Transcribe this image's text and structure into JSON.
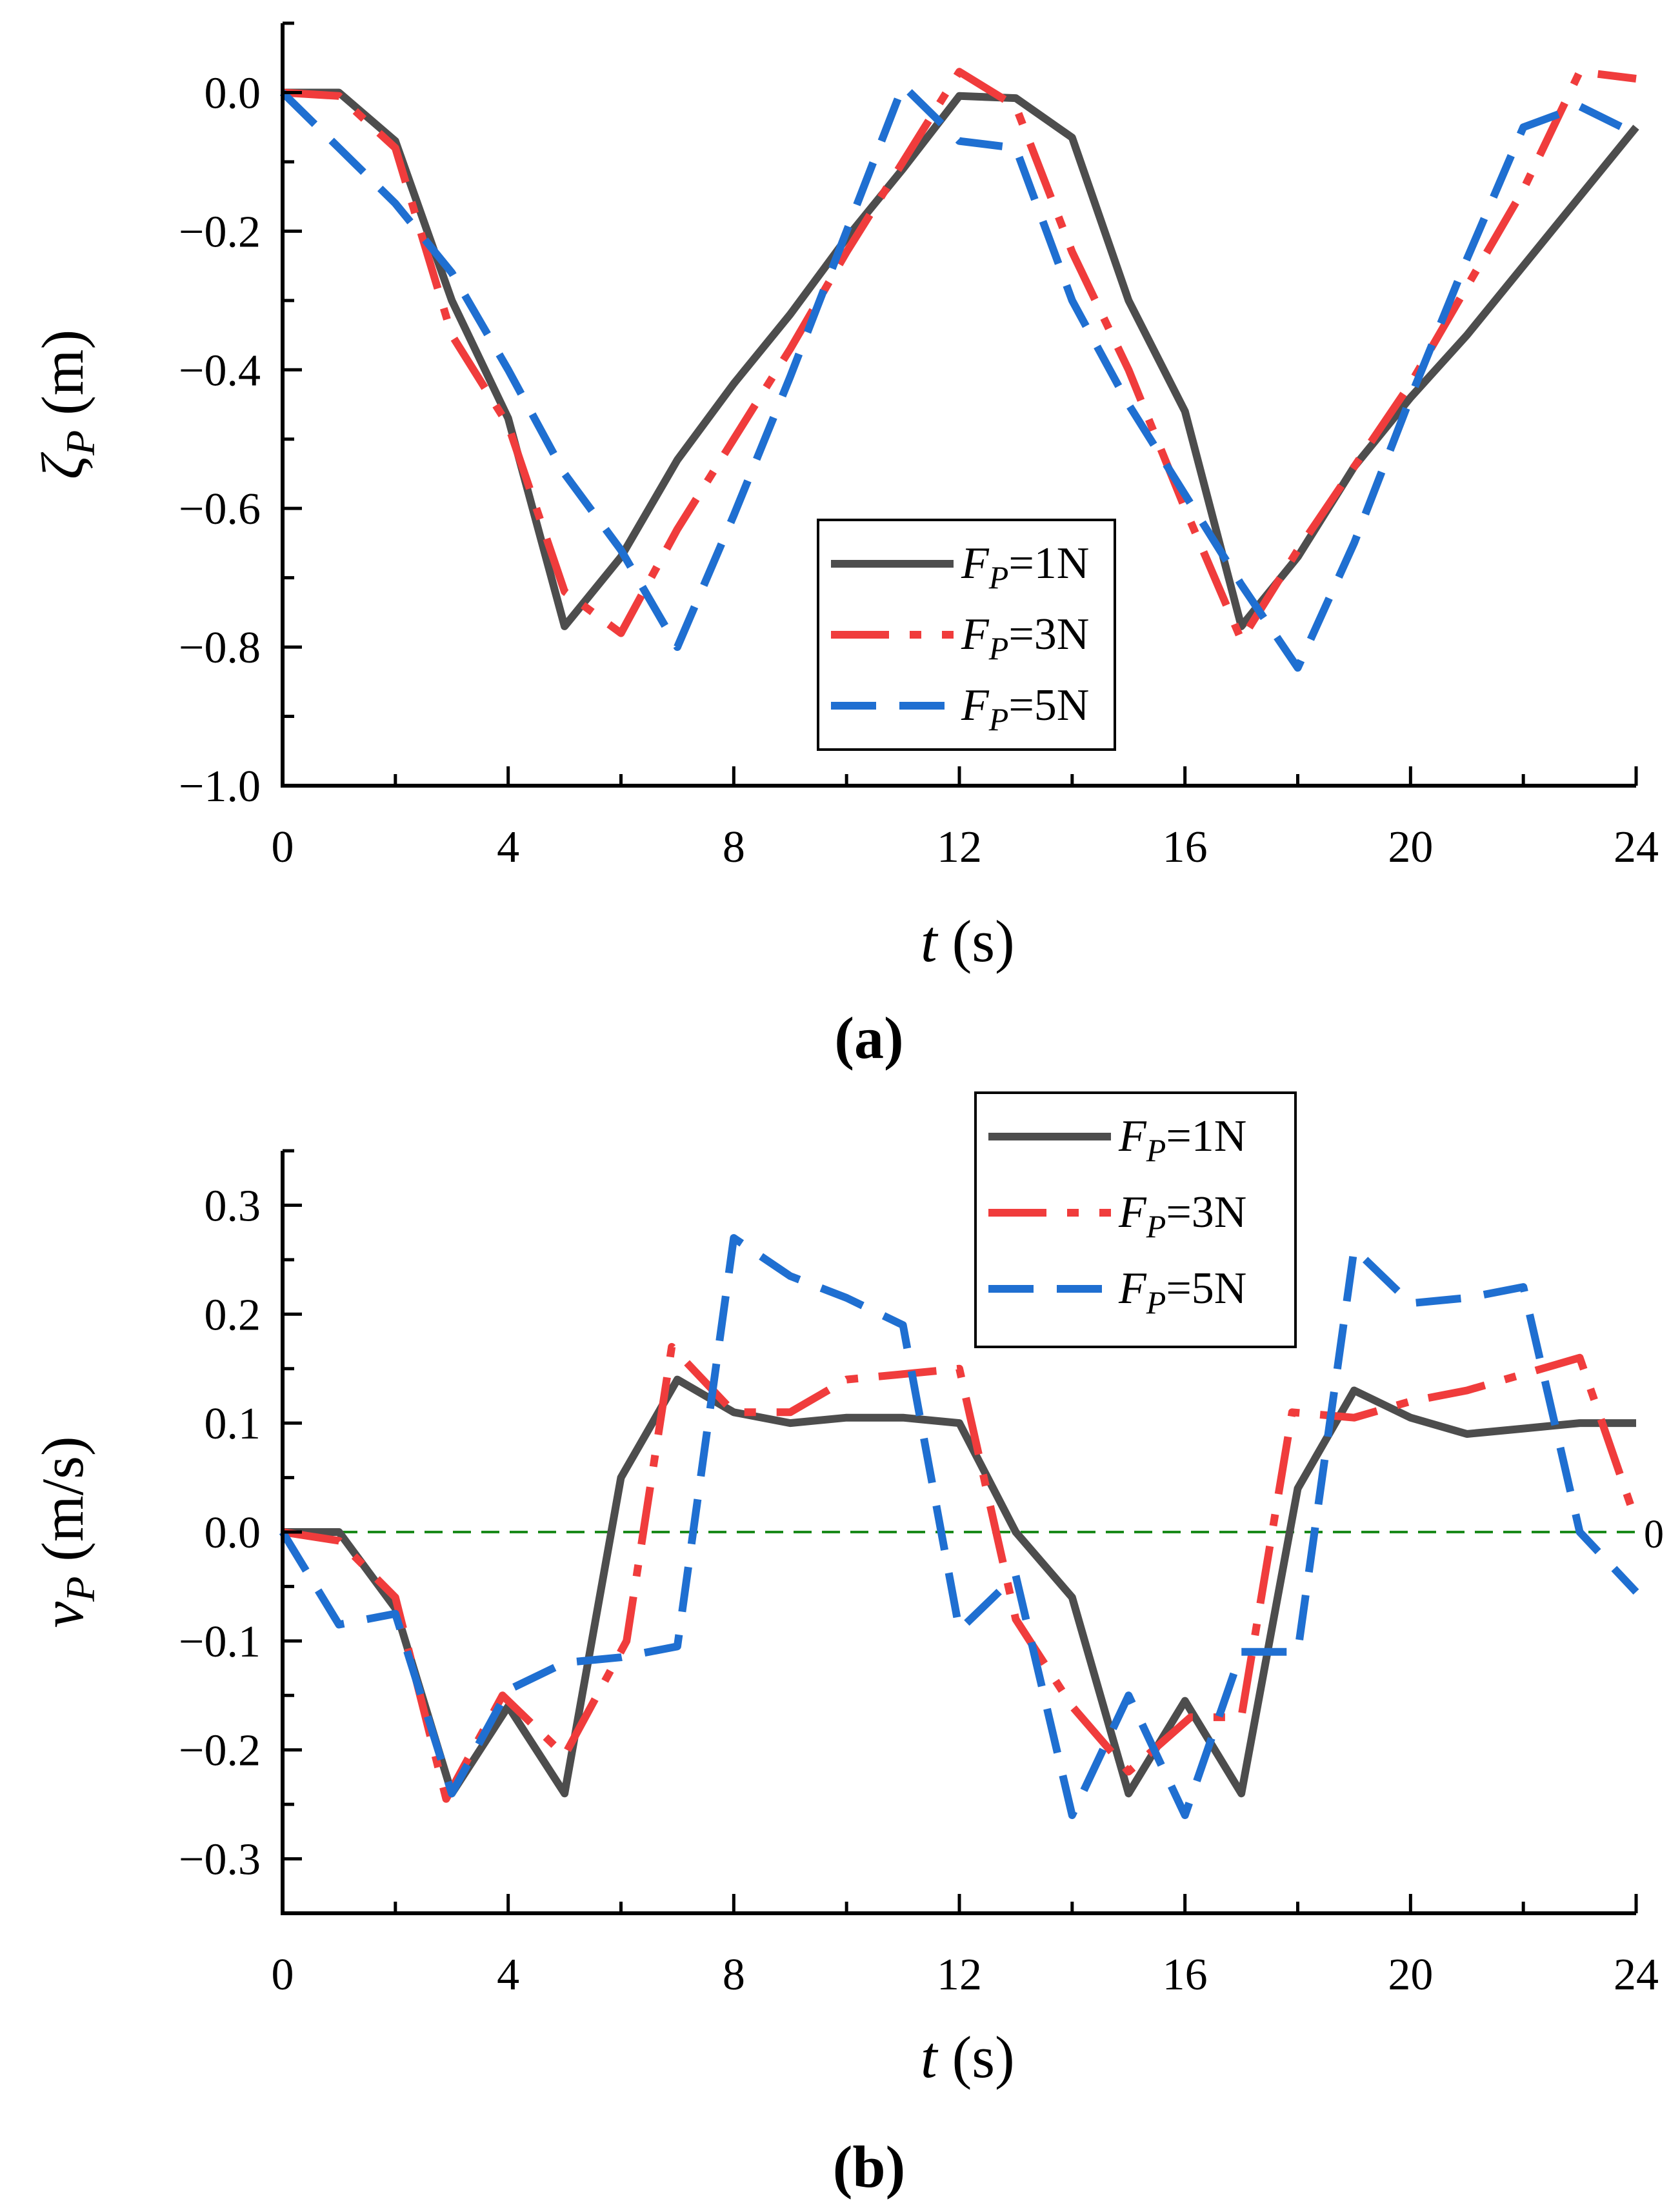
{
  "chart_data": [
    {
      "type": "line",
      "panel_label": "(a)",
      "xlabel_var": "t",
      "xlabel_unit": " (s)",
      "ylabel_var": "ζ",
      "ylabel_sub": "P",
      "ylabel_unit": " (m)",
      "xlim": [
        0,
        24
      ],
      "ylim": [
        -1.0,
        0.1
      ],
      "xticks": [
        0,
        4,
        8,
        12,
        16,
        20,
        24
      ],
      "xtick_labels": [
        "0",
        "4",
        "8",
        "12",
        "16",
        "20",
        "24"
      ],
      "yticks": [
        0.0,
        -0.2,
        -0.4,
        -0.6,
        -0.8,
        -1.0
      ],
      "ytick_labels": [
        "0.0",
        "−0.2",
        "−0.4",
        "−0.6",
        "−0.8",
        "−1.0"
      ],
      "grid": false,
      "legend_position": "center-right",
      "series": [
        {
          "name": "F_P=1N",
          "legend_var": "F",
          "legend_sub": "P",
          "legend_rest": "=1N",
          "color": "#4d4d4d",
          "style": "solid",
          "x": [
            0,
            1,
            2,
            3,
            4,
            5,
            6,
            7,
            8,
            9,
            10,
            11,
            12,
            13,
            14,
            15,
            16,
            17,
            18,
            19,
            20,
            21,
            22,
            23,
            24
          ],
          "y": [
            0,
            0,
            -0.07,
            -0.3,
            -0.47,
            -0.77,
            -0.67,
            -0.53,
            -0.42,
            -0.32,
            -0.21,
            -0.11,
            -0.005,
            -0.008,
            -0.065,
            -0.3,
            -0.46,
            -0.77,
            -0.67,
            -0.54,
            -0.44,
            -0.35,
            -0.25,
            -0.15,
            -0.05
          ]
        },
        {
          "name": "F_P=3N",
          "legend_var": "F",
          "legend_sub": "P",
          "legend_rest": "=3N",
          "color": "#f03c3c",
          "style": "dashdot",
          "x": [
            0,
            1,
            2,
            3,
            4,
            5,
            6,
            7,
            8,
            9,
            10,
            11,
            12,
            13,
            14,
            15,
            16,
            17,
            18,
            19,
            20,
            21,
            22,
            23,
            24
          ],
          "y": [
            0,
            -0.005,
            -0.08,
            -0.35,
            -0.48,
            -0.72,
            -0.78,
            -0.63,
            -0.5,
            -0.37,
            -0.23,
            -0.1,
            0.03,
            -0.02,
            -0.23,
            -0.4,
            -0.6,
            -0.79,
            -0.66,
            -0.54,
            -0.42,
            -0.28,
            -0.14,
            0.03,
            0.02
          ]
        },
        {
          "name": "F_P=5N",
          "legend_var": "F",
          "legend_sub": "P",
          "legend_rest": "=5N",
          "color": "#1f6fd1",
          "style": "dashed",
          "x": [
            0,
            1,
            2,
            3,
            4,
            5,
            6,
            7,
            8,
            9,
            10,
            11,
            12,
            13,
            14,
            15,
            16,
            17,
            18,
            19,
            20,
            21,
            22,
            23,
            24
          ],
          "y": [
            0,
            -0.08,
            -0.16,
            -0.26,
            -0.4,
            -0.55,
            -0.66,
            -0.8,
            -0.61,
            -0.41,
            -0.2,
            0.01,
            -0.07,
            -0.08,
            -0.3,
            -0.45,
            -0.58,
            -0.71,
            -0.83,
            -0.65,
            -0.44,
            -0.24,
            -0.05,
            -0.02,
            -0.06
          ]
        }
      ]
    },
    {
      "type": "line",
      "panel_label": "(b)",
      "xlabel_var": "t",
      "xlabel_unit": " (s)",
      "ylabel_var": "v",
      "ylabel_sub": "P",
      "ylabel_unit": " (m/s)",
      "xlim": [
        0,
        24
      ],
      "ylim": [
        -0.35,
        0.35
      ],
      "xticks": [
        0,
        4,
        8,
        12,
        16,
        20,
        24
      ],
      "xtick_labels": [
        "0",
        "4",
        "8",
        "12",
        "16",
        "20",
        "24"
      ],
      "yticks": [
        0.3,
        0.2,
        0.1,
        0.0,
        -0.1,
        -0.2,
        -0.3
      ],
      "ytick_labels": [
        "0.3",
        "0.2",
        "0.1",
        "0.0",
        "−0.1",
        "−0.2",
        "−0.3"
      ],
      "grid": false,
      "legend_position": "top-right",
      "reference_line": {
        "y": 0,
        "color": "#1a8a1a",
        "style": "dashed",
        "label": "0"
      },
      "series": [
        {
          "name": "F_P=1N",
          "legend_var": "F",
          "legend_sub": "P",
          "legend_rest": "=1N",
          "color": "#4d4d4d",
          "style": "solid",
          "x": [
            0,
            1,
            2,
            3,
            4,
            5,
            6,
            7,
            8,
            9,
            10,
            11,
            12,
            13,
            14,
            15,
            16,
            17,
            18,
            19,
            20,
            21,
            22,
            23,
            24
          ],
          "y": [
            0,
            0,
            -0.07,
            -0.24,
            -0.16,
            -0.24,
            0.05,
            0.14,
            0.11,
            0.1,
            0.105,
            0.105,
            0.1,
            0,
            -0.06,
            -0.24,
            -0.155,
            -0.24,
            0.04,
            0.13,
            0.105,
            0.09,
            0.095,
            0.1,
            0.1
          ]
        },
        {
          "name": "F_P=3N",
          "legend_var": "F",
          "legend_sub": "P",
          "legend_rest": "=3N",
          "color": "#f03c3c",
          "style": "dashdot",
          "x": [
            0,
            1,
            2,
            2.9,
            3.9,
            5,
            6.1,
            6.9,
            8,
            9,
            10,
            11,
            12,
            13,
            14,
            15,
            16.1,
            17,
            17.9,
            19,
            20,
            21,
            22,
            23,
            24
          ],
          "y": [
            0,
            -0.008,
            -0.06,
            -0.245,
            -0.15,
            -0.205,
            -0.1,
            0.17,
            0.11,
            0.11,
            0.14,
            0.145,
            0.15,
            -0.08,
            -0.16,
            -0.22,
            -0.17,
            -0.17,
            0.11,
            0.105,
            0.12,
            0.13,
            0.145,
            0.16,
            0.01
          ]
        },
        {
          "name": "F_P=5N",
          "legend_var": "F",
          "legend_sub": "P",
          "legend_rest": "=5N",
          "color": "#1f6fd1",
          "style": "dashed",
          "x": [
            0,
            1,
            2,
            3,
            4,
            5,
            6,
            7,
            8,
            9,
            10,
            11,
            12,
            13,
            14,
            15,
            16,
            17,
            18,
            19,
            20,
            21,
            22,
            23,
            24
          ],
          "y": [
            0,
            -0.085,
            -0.075,
            -0.24,
            -0.145,
            -0.12,
            -0.115,
            -0.105,
            0.27,
            0.235,
            0.215,
            0.19,
            -0.09,
            -0.04,
            -0.26,
            -0.15,
            -0.26,
            -0.11,
            -0.11,
            0.26,
            0.21,
            0.215,
            0.225,
            0,
            -0.055
          ]
        }
      ]
    }
  ]
}
